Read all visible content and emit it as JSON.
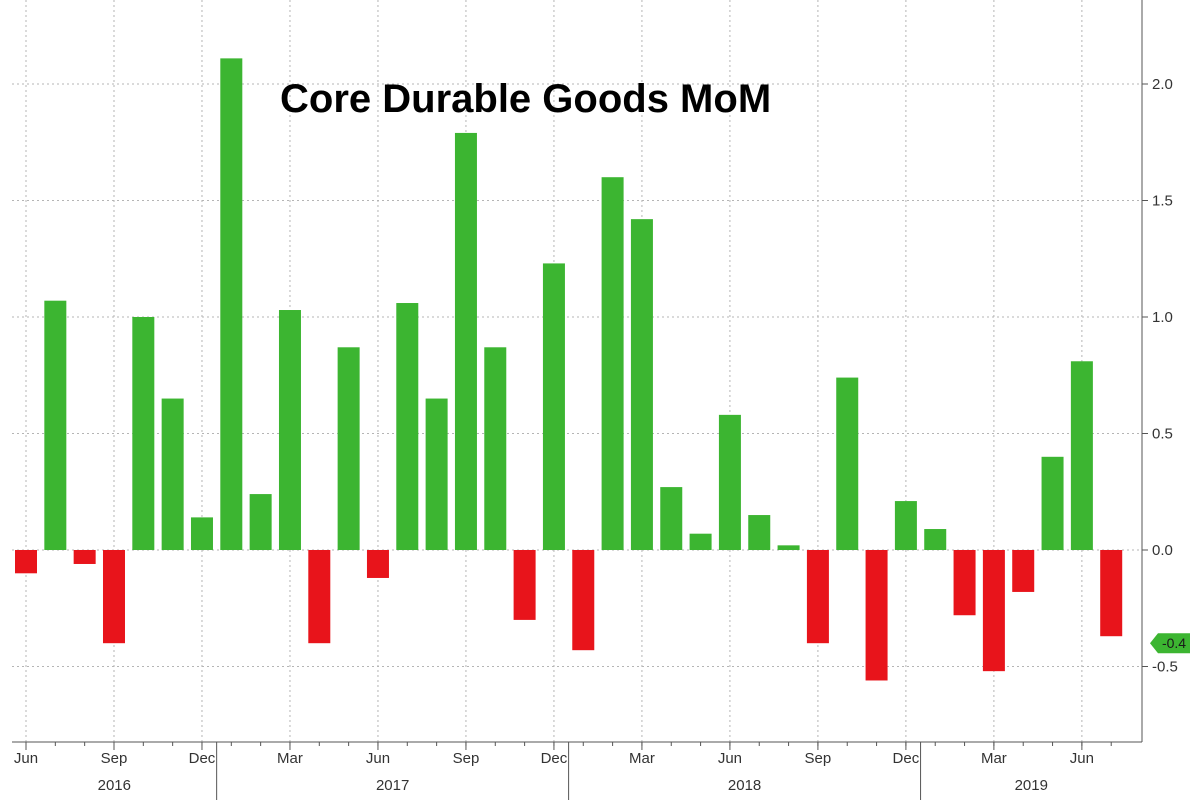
{
  "chart_data": {
    "type": "bar",
    "title": "Core Durable Goods MoM",
    "xlabel": "",
    "ylabel": "",
    "ylim": [
      -0.8,
      2.3
    ],
    "y_ticks": [
      2.0,
      1.5,
      1.0,
      0.5,
      0.0,
      -0.5
    ],
    "y_tick_labels": [
      "2.0",
      "1.5",
      "1.0",
      "0.5",
      "0.0",
      "-0.5"
    ],
    "y_axis_position": "right",
    "grid": true,
    "categories": [
      "Jun 2016",
      "Jul 2016",
      "Aug 2016",
      "Sep 2016",
      "Oct 2016",
      "Nov 2016",
      "Dec 2016",
      "Jan 2017",
      "Feb 2017",
      "Mar 2017",
      "Apr 2017",
      "May 2017",
      "Jun 2017",
      "Jul 2017",
      "Aug 2017",
      "Sep 2017",
      "Oct 2017",
      "Nov 2017",
      "Dec 2017",
      "Jan 2018",
      "Feb 2018",
      "Mar 2018",
      "Apr 2018",
      "May 2018",
      "Jun 2018",
      "Jul 2018",
      "Aug 2018",
      "Sep 2018",
      "Oct 2018",
      "Nov 2018",
      "Dec 2018",
      "Jan 2019",
      "Feb 2019",
      "Mar 2019",
      "Apr 2019",
      "May 2019",
      "Jun 2019",
      "Jul 2019"
    ],
    "values": [
      -0.1,
      1.07,
      -0.06,
      -0.4,
      1.0,
      0.65,
      0.14,
      2.11,
      0.24,
      1.03,
      -0.4,
      0.87,
      -0.12,
      1.06,
      0.65,
      1.79,
      0.87,
      -0.3,
      1.23,
      -0.43,
      1.6,
      1.42,
      0.27,
      0.07,
      0.58,
      0.15,
      0.02,
      -0.4,
      0.74,
      -0.56,
      0.21,
      0.09,
      -0.28,
      -0.52,
      -0.18,
      0.4,
      0.81,
      -0.37
    ],
    "x_tick_labels": [
      {
        "index": 0,
        "label": "Jun"
      },
      {
        "index": 3,
        "label": "Sep"
      },
      {
        "index": 6,
        "label": "Dec"
      },
      {
        "index": 9,
        "label": "Mar"
      },
      {
        "index": 12,
        "label": "Jun"
      },
      {
        "index": 15,
        "label": "Sep"
      },
      {
        "index": 18,
        "label": "Dec"
      },
      {
        "index": 21,
        "label": "Mar"
      },
      {
        "index": 24,
        "label": "Jun"
      },
      {
        "index": 27,
        "label": "Sep"
      },
      {
        "index": 30,
        "label": "Dec"
      },
      {
        "index": 33,
        "label": "Mar"
      },
      {
        "index": 36,
        "label": "Jun"
      }
    ],
    "year_labels": [
      {
        "label": "2016",
        "start": 0,
        "end": 6
      },
      {
        "label": "2017",
        "start": 7,
        "end": 18
      },
      {
        "label": "2018",
        "start": 19,
        "end": 30
      },
      {
        "label": "2019",
        "start": 31,
        "end": 37
      }
    ],
    "last_value_badge": "-0.4",
    "colors": {
      "positive": "#3cb531",
      "negative": "#e8141b",
      "grid": "#b5b5b5",
      "axis": "#555555",
      "badge": "#3cb531"
    }
  }
}
